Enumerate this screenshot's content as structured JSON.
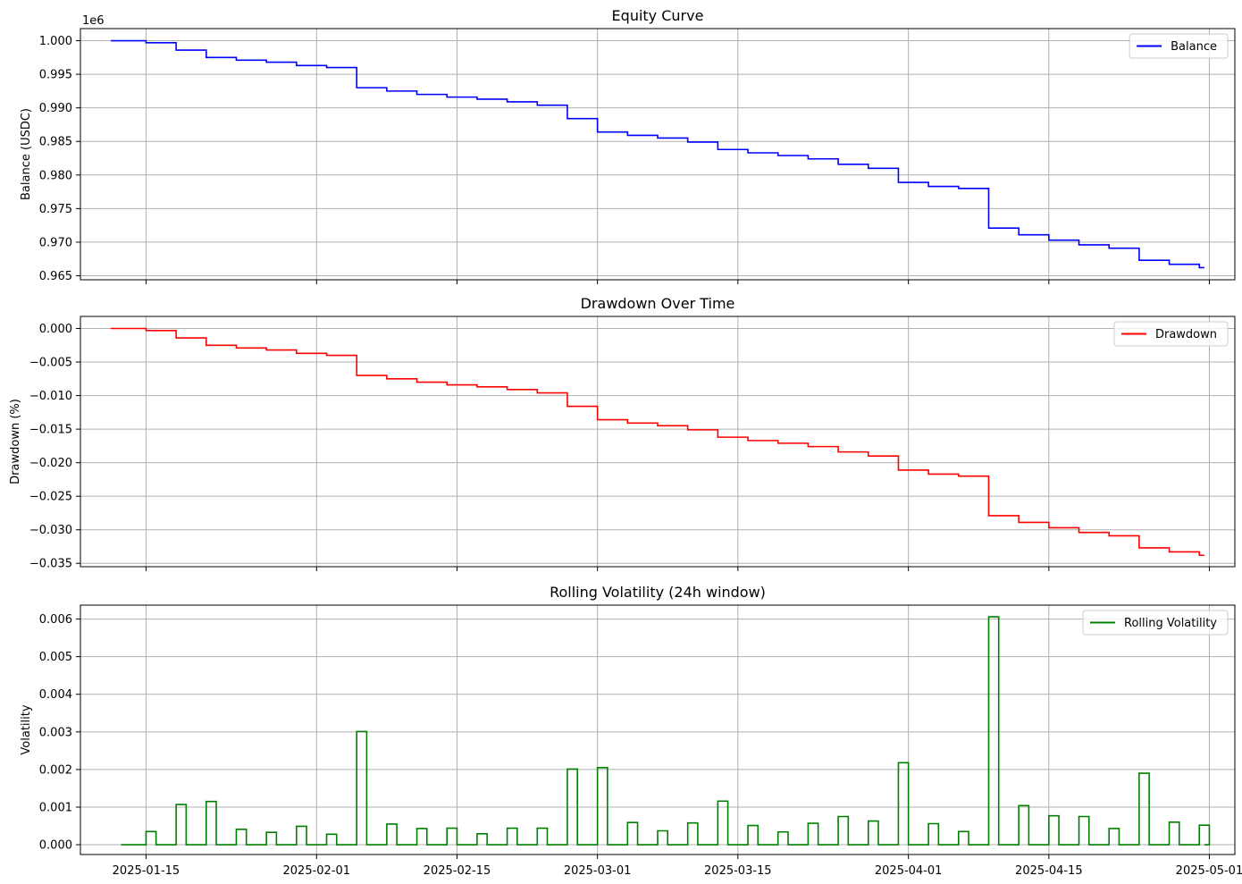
{
  "chart_data": [
    {
      "type": "line",
      "title": "Equity Curve",
      "ylabel": "Balance (USDC)",
      "offset_text": "1e6",
      "ylim": [
        0.9644,
        1.0018
      ],
      "yticks": [
        "1.000",
        "0.995",
        "0.990",
        "0.985",
        "0.980",
        "0.975",
        "0.970",
        "0.965"
      ],
      "xticks": [
        "2025-01-15",
        "2025-02-01",
        "2025-02-15",
        "2025-03-01",
        "2025-03-15",
        "2025-04-01",
        "2025-04-15",
        "2025-05-01"
      ],
      "legend": "top-right",
      "grid": true,
      "color": "#0000ff",
      "series": [
        {
          "name": "Balance",
          "steps": [
            [
              "2025-01-11 12:00",
              1.0
            ],
            [
              "2025-01-15",
              0.9997
            ],
            [
              "2025-01-18",
              0.9986
            ],
            [
              "2025-01-21",
              0.9975
            ],
            [
              "2025-01-24",
              0.9971
            ],
            [
              "2025-01-27",
              0.9968
            ],
            [
              "2025-01-30",
              0.9963
            ],
            [
              "2025-02-02",
              0.996
            ],
            [
              "2025-02-05",
              0.993
            ],
            [
              "2025-02-08",
              0.9925
            ],
            [
              "2025-02-11",
              0.992
            ],
            [
              "2025-02-14",
              0.9916
            ],
            [
              "2025-02-17",
              0.9913
            ],
            [
              "2025-02-20",
              0.9909
            ],
            [
              "2025-02-23",
              0.9904
            ],
            [
              "2025-02-26",
              0.9884
            ],
            [
              "2025-03-01",
              0.9864
            ],
            [
              "2025-03-04",
              0.9859
            ],
            [
              "2025-03-07",
              0.9855
            ],
            [
              "2025-03-10",
              0.9849
            ],
            [
              "2025-03-13",
              0.9838
            ],
            [
              "2025-03-16",
              0.9833
            ],
            [
              "2025-03-19",
              0.9829
            ],
            [
              "2025-03-22",
              0.9824
            ],
            [
              "2025-03-25",
              0.9816
            ],
            [
              "2025-03-28",
              0.981
            ],
            [
              "2025-03-31",
              0.9789
            ],
            [
              "2025-04-03",
              0.9783
            ],
            [
              "2025-04-06",
              0.978
            ],
            [
              "2025-04-09",
              0.9721
            ],
            [
              "2025-04-12",
              0.9711
            ],
            [
              "2025-04-15",
              0.9703
            ],
            [
              "2025-04-18",
              0.9696
            ],
            [
              "2025-04-21",
              0.9691
            ],
            [
              "2025-04-24",
              0.9673
            ],
            [
              "2025-04-27",
              0.9667
            ],
            [
              "2025-04-30",
              0.9662
            ]
          ],
          "end": "2025-04-30 12:00"
        }
      ]
    },
    {
      "type": "line",
      "title": "Drawdown Over Time",
      "ylabel": "Drawdown (%)",
      "ylim": [
        -0.0355,
        0.0018
      ],
      "yticks": [
        "0.000",
        "−0.005",
        "−0.010",
        "−0.015",
        "−0.020",
        "−0.025",
        "−0.030",
        "−0.035"
      ],
      "legend": "top-right",
      "grid": true,
      "color": "#ff0000",
      "series": [
        {
          "name": "Drawdown",
          "steps": [
            [
              "2025-01-11 12:00",
              0.0
            ],
            [
              "2025-01-15",
              -0.0003
            ],
            [
              "2025-01-18",
              -0.0014
            ],
            [
              "2025-01-21",
              -0.0025
            ],
            [
              "2025-01-24",
              -0.0029
            ],
            [
              "2025-01-27",
              -0.0032
            ],
            [
              "2025-01-30",
              -0.0037
            ],
            [
              "2025-02-02",
              -0.004
            ],
            [
              "2025-02-05",
              -0.007
            ],
            [
              "2025-02-08",
              -0.0075
            ],
            [
              "2025-02-11",
              -0.008
            ],
            [
              "2025-02-14",
              -0.0084
            ],
            [
              "2025-02-17",
              -0.0087
            ],
            [
              "2025-02-20",
              -0.0091
            ],
            [
              "2025-02-23",
              -0.0096
            ],
            [
              "2025-02-26",
              -0.0116
            ],
            [
              "2025-03-01",
              -0.0136
            ],
            [
              "2025-03-04",
              -0.0141
            ],
            [
              "2025-03-07",
              -0.0145
            ],
            [
              "2025-03-10",
              -0.0151
            ],
            [
              "2025-03-13",
              -0.0162
            ],
            [
              "2025-03-16",
              -0.0167
            ],
            [
              "2025-03-19",
              -0.0171
            ],
            [
              "2025-03-22",
              -0.0176
            ],
            [
              "2025-03-25",
              -0.0184
            ],
            [
              "2025-03-28",
              -0.019
            ],
            [
              "2025-03-31",
              -0.0211
            ],
            [
              "2025-04-03",
              -0.0217
            ],
            [
              "2025-04-06",
              -0.022
            ],
            [
              "2025-04-09",
              -0.0279
            ],
            [
              "2025-04-12",
              -0.0289
            ],
            [
              "2025-04-15",
              -0.0297
            ],
            [
              "2025-04-18",
              -0.0304
            ],
            [
              "2025-04-21",
              -0.0309
            ],
            [
              "2025-04-24",
              -0.0327
            ],
            [
              "2025-04-27",
              -0.0333
            ],
            [
              "2025-04-30",
              -0.0338
            ]
          ],
          "end": "2025-04-30 12:00"
        }
      ]
    },
    {
      "type": "line",
      "title": "Rolling Volatility (24h window)",
      "ylabel": "Volatility",
      "ylim": [
        -0.00026,
        0.00637
      ],
      "yticks": [
        "0.006",
        "0.005",
        "0.004",
        "0.003",
        "0.002",
        "0.001",
        "0.000"
      ],
      "xticks": [
        "2025-01-15",
        "2025-02-01",
        "2025-02-15",
        "2025-03-01",
        "2025-03-15",
        "2025-04-01",
        "2025-04-15",
        "2025-05-01"
      ],
      "legend": "top-right",
      "grid": true,
      "color": "#008000",
      "series": [
        {
          "name": "Rolling Volatility",
          "start": "2025-01-12 12:00",
          "end": "2025-04-30 12:00",
          "pulse_days": 1,
          "pulses": [
            [
              "2025-01-15",
              0.00035
            ],
            [
              "2025-01-18",
              0.00107
            ],
            [
              "2025-01-21",
              0.00115
            ],
            [
              "2025-01-24",
              0.00041
            ],
            [
              "2025-01-27",
              0.00033
            ],
            [
              "2025-01-30",
              0.00049
            ],
            [
              "2025-02-02",
              0.00028
            ],
            [
              "2025-02-05",
              0.00301
            ],
            [
              "2025-02-08",
              0.00055
            ],
            [
              "2025-02-11",
              0.00043
            ],
            [
              "2025-02-14",
              0.00044
            ],
            [
              "2025-02-17",
              0.00029
            ],
            [
              "2025-02-20",
              0.00044
            ],
            [
              "2025-02-23",
              0.00044
            ],
            [
              "2025-02-26",
              0.00201
            ],
            [
              "2025-03-01",
              0.00205
            ],
            [
              "2025-03-04",
              0.00059
            ],
            [
              "2025-03-07",
              0.00037
            ],
            [
              "2025-03-10",
              0.00058
            ],
            [
              "2025-03-13",
              0.00116
            ],
            [
              "2025-03-16",
              0.00051
            ],
            [
              "2025-03-19",
              0.00034
            ],
            [
              "2025-03-22",
              0.00057
            ],
            [
              "2025-03-25",
              0.00075
            ],
            [
              "2025-03-28",
              0.00063
            ],
            [
              "2025-03-31",
              0.00218
            ],
            [
              "2025-04-03",
              0.00056
            ],
            [
              "2025-04-06",
              0.00035
            ],
            [
              "2025-04-09",
              0.00606
            ],
            [
              "2025-04-12",
              0.00104
            ],
            [
              "2025-04-15",
              0.00077
            ],
            [
              "2025-04-18",
              0.00075
            ],
            [
              "2025-04-21",
              0.00043
            ],
            [
              "2025-04-24",
              0.0019
            ],
            [
              "2025-04-27",
              0.0006
            ],
            [
              "2025-04-30",
              0.00052
            ]
          ]
        }
      ]
    }
  ]
}
